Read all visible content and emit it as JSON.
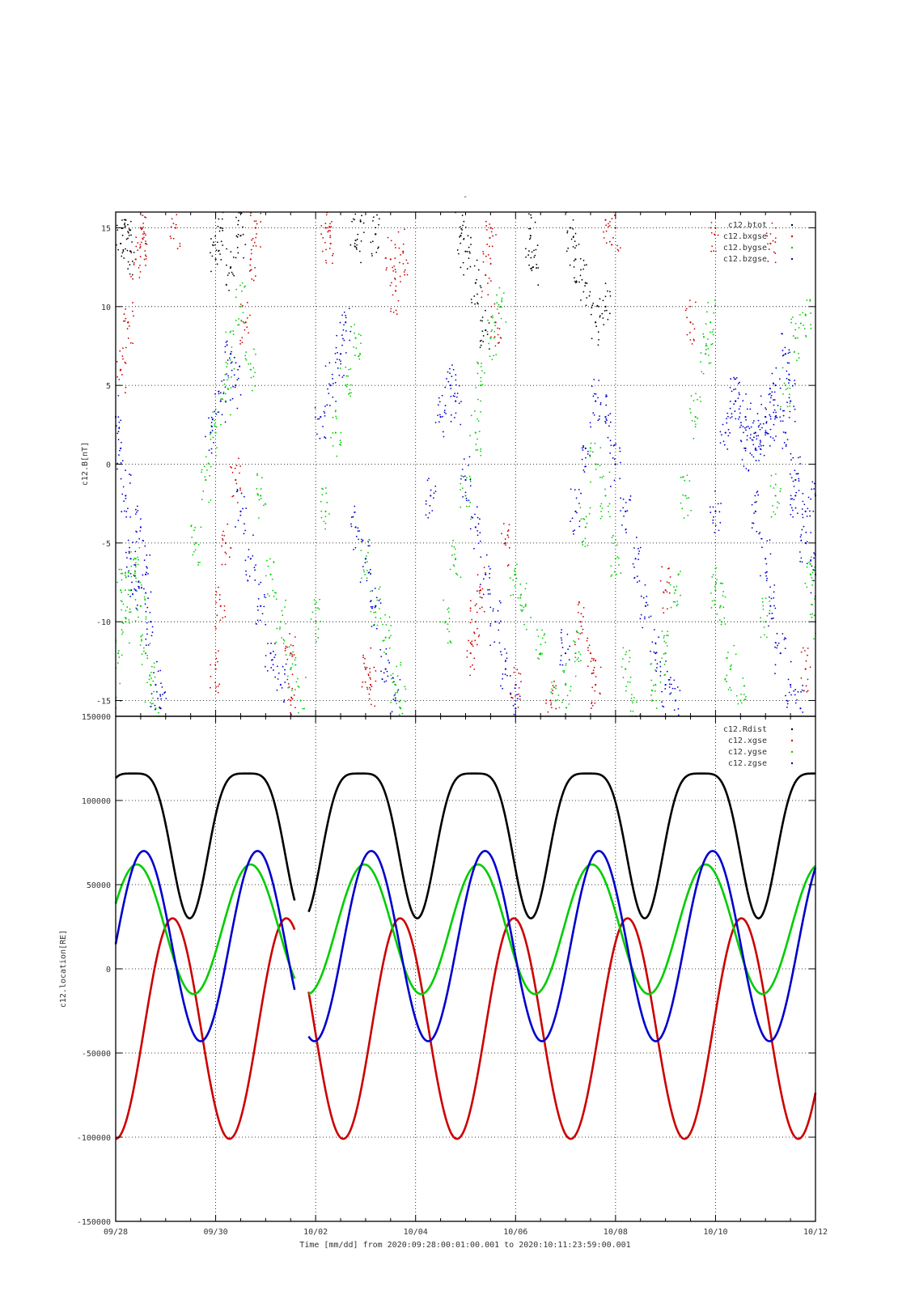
{
  "figure": {
    "top_title": "-",
    "time_footer": "Time [mm/dd]  from 2020:09:28:00:01:00.001  to  2020:10:11:23:59:00.001"
  },
  "colors": {
    "black": "#000000",
    "red": "#cc0000",
    "green": "#00cc00",
    "blue": "#0000cc"
  },
  "chart_data": [
    {
      "type": "scatter",
      "ylabel": "c12.B[nT]",
      "ylim": [
        -16,
        16
      ],
      "xlim": [
        "09/28",
        "10/12"
      ],
      "grid": true,
      "legend_position": "top-right",
      "yticks": [
        -15,
        -10,
        -5,
        0,
        5,
        10,
        15
      ],
      "xticks": [
        "09/28",
        "09/30",
        "10/02",
        "10/04",
        "10/06",
        "10/08",
        "10/10",
        "10/12"
      ],
      "series": [
        {
          "name": "c12.btot",
          "color": "#000000",
          "points": [
            [
              0.1,
              14
            ],
            [
              0.2,
              15.5
            ],
            [
              0.3,
              13.5
            ],
            [
              2.0,
              13
            ],
            [
              2.1,
              15
            ],
            [
              2.3,
              12.5
            ],
            [
              2.5,
              14.5
            ],
            [
              4.8,
              14.2
            ],
            [
              4.9,
              15.4
            ],
            [
              5.2,
              14.6
            ],
            [
              6.9,
              14.5
            ],
            [
              7.0,
              13.5
            ],
            [
              7.2,
              11.5
            ],
            [
              7.4,
              8.5
            ],
            [
              8.3,
              14.5
            ],
            [
              8.35,
              12.5
            ],
            [
              9.1,
              15
            ],
            [
              9.2,
              13
            ],
            [
              9.4,
              11.5
            ],
            [
              9.6,
              9
            ],
            [
              9.8,
              10
            ]
          ]
        },
        {
          "name": "c12.bxgse",
          "color": "#cc0000",
          "points": [
            [
              0.1,
              6
            ],
            [
              0.25,
              9
            ],
            [
              0.4,
              13
            ],
            [
              0.5,
              15
            ],
            [
              0.6,
              14
            ],
            [
              1.2,
              15
            ],
            [
              2.0,
              -13
            ],
            [
              2.1,
              -9
            ],
            [
              2.2,
              -5
            ],
            [
              2.4,
              -1
            ],
            [
              2.6,
              9
            ],
            [
              2.7,
              13
            ],
            [
              2.8,
              15
            ],
            [
              3.5,
              -12
            ],
            [
              3.5,
              -15
            ],
            [
              4.2,
              15
            ],
            [
              4.3,
              14
            ],
            [
              5.0,
              -13
            ],
            [
              5.1,
              -14
            ],
            [
              5.5,
              13
            ],
            [
              5.6,
              11
            ],
            [
              5.75,
              13.5
            ],
            [
              7.1,
              -12
            ],
            [
              7.2,
              -10
            ],
            [
              7.3,
              -8
            ],
            [
              7.4,
              12
            ],
            [
              7.5,
              15
            ],
            [
              7.6,
              9
            ],
            [
              7.8,
              -5
            ],
            [
              8.0,
              -14
            ],
            [
              8.7,
              -15
            ],
            [
              9.3,
              -10
            ],
            [
              9.5,
              -12
            ],
            [
              9.6,
              -14
            ],
            [
              9.8,
              15.5
            ],
            [
              10.0,
              15
            ],
            [
              11.0,
              -8
            ],
            [
              11.5,
              9
            ],
            [
              12.0,
              15
            ],
            [
              13.1,
              14
            ],
            [
              13.8,
              -13
            ]
          ]
        },
        {
          "name": "c12.bygse",
          "color": "#00cc00",
          "points": [
            [
              0.0,
              -15
            ],
            [
              0.05,
              -12
            ],
            [
              0.1,
              -8
            ],
            [
              0.2,
              -10
            ],
            [
              0.3,
              -8
            ],
            [
              0.4,
              -6
            ],
            [
              0.5,
              -9
            ],
            [
              0.6,
              -12
            ],
            [
              0.7,
              -14
            ],
            [
              0.8,
              -15.5
            ],
            [
              1.6,
              -5
            ],
            [
              1.8,
              -1
            ],
            [
              2.0,
              2
            ],
            [
              2.2,
              4
            ],
            [
              2.3,
              7
            ],
            [
              2.5,
              10
            ],
            [
              2.7,
              6
            ],
            [
              2.9,
              -2
            ],
            [
              3.1,
              -7
            ],
            [
              3.3,
              -10
            ],
            [
              3.5,
              -13
            ],
            [
              3.7,
              -15
            ],
            [
              4.0,
              -10
            ],
            [
              4.2,
              -3
            ],
            [
              4.4,
              2
            ],
            [
              4.6,
              5
            ],
            [
              4.8,
              8
            ],
            [
              5.0,
              -6
            ],
            [
              5.2,
              -9
            ],
            [
              5.4,
              -11
            ],
            [
              5.6,
              -14
            ],
            [
              5.7,
              -15.5
            ],
            [
              6.6,
              -10
            ],
            [
              6.8,
              -6
            ],
            [
              7.0,
              -2
            ],
            [
              7.2,
              2
            ],
            [
              7.3,
              5
            ],
            [
              7.5,
              8
            ],
            [
              7.7,
              10
            ],
            [
              8.0,
              -7
            ],
            [
              8.2,
              -9
            ],
            [
              8.5,
              -12
            ],
            [
              8.8,
              -15
            ],
            [
              9.0,
              -14
            ],
            [
              9.2,
              -12
            ],
            [
              9.4,
              -4
            ],
            [
              9.6,
              0
            ],
            [
              9.8,
              -2
            ],
            [
              10.0,
              -6
            ],
            [
              10.2,
              -13
            ],
            [
              10.4,
              -16
            ],
            [
              10.8,
              -14
            ],
            [
              11.0,
              -12
            ],
            [
              11.2,
              -8
            ],
            [
              11.4,
              -2
            ],
            [
              11.6,
              3
            ],
            [
              11.8,
              7
            ],
            [
              11.9,
              9
            ],
            [
              12.0,
              -8
            ],
            [
              12.1,
              -9
            ],
            [
              12.3,
              -13
            ],
            [
              12.5,
              -15
            ],
            [
              13.0,
              -10
            ],
            [
              13.2,
              -2
            ],
            [
              13.4,
              5
            ],
            [
              13.6,
              8
            ],
            [
              13.8,
              9.5
            ],
            [
              13.9,
              -7
            ],
            [
              14.0,
              -10
            ]
          ]
        },
        {
          "name": "c12.bzgse",
          "color": "#0000cc",
          "points": [
            [
              0.0,
              3
            ],
            [
              0.1,
              1
            ],
            [
              0.2,
              -2
            ],
            [
              0.3,
              -6
            ],
            [
              0.4,
              -8
            ],
            [
              0.5,
              -4
            ],
            [
              0.6,
              -7
            ],
            [
              0.7,
              -10
            ],
            [
              0.8,
              -14
            ],
            [
              0.9,
              -15.5
            ],
            [
              1.9,
              2
            ],
            [
              2.1,
              4
            ],
            [
              2.3,
              7
            ],
            [
              2.4,
              5
            ],
            [
              2.5,
              -3
            ],
            [
              2.7,
              -6
            ],
            [
              2.9,
              -9
            ],
            [
              3.1,
              -12
            ],
            [
              3.3,
              -14
            ],
            [
              4.1,
              3
            ],
            [
              4.3,
              5
            ],
            [
              4.5,
              7
            ],
            [
              4.6,
              9
            ],
            [
              4.8,
              -4
            ],
            [
              5.0,
              -6
            ],
            [
              5.2,
              -9
            ],
            [
              5.4,
              -13
            ],
            [
              5.6,
              -15
            ],
            [
              6.3,
              -2
            ],
            [
              6.5,
              3
            ],
            [
              6.7,
              5
            ],
            [
              6.8,
              4
            ],
            [
              7.0,
              -1
            ],
            [
              7.2,
              -4
            ],
            [
              7.4,
              -7
            ],
            [
              7.6,
              -10
            ],
            [
              7.8,
              -13
            ],
            [
              8.0,
              -15.5
            ],
            [
              9.0,
              -12
            ],
            [
              9.2,
              -3
            ],
            [
              9.4,
              1
            ],
            [
              9.6,
              4
            ],
            [
              9.8,
              3
            ],
            [
              10.0,
              0
            ],
            [
              10.2,
              -3
            ],
            [
              10.4,
              -6
            ],
            [
              10.6,
              -9
            ],
            [
              10.8,
              -12
            ],
            [
              11.0,
              -14
            ],
            [
              11.2,
              -15
            ],
            [
              12.0,
              -3
            ],
            [
              12.2,
              2
            ],
            [
              12.4,
              4
            ],
            [
              12.6,
              1
            ],
            [
              12.8,
              -3
            ],
            [
              13.0,
              -6
            ],
            [
              13.1,
              -9
            ],
            [
              13.3,
              -12
            ],
            [
              13.5,
              -14
            ],
            [
              13.7,
              -15.5
            ],
            [
              12.4,
              4
            ],
            [
              12.6,
              3
            ],
            [
              12.8,
              2
            ],
            [
              13.0,
              3
            ],
            [
              13.2,
              3
            ],
            [
              13.4,
              2
            ],
            [
              13.6,
              -2
            ],
            [
              13.8,
              -5
            ],
            [
              14.0,
              -7
            ],
            [
              12.8,
              1
            ],
            [
              13.0,
              2
            ],
            [
              13.2,
              5
            ],
            [
              13.4,
              7
            ],
            [
              13.5,
              4
            ],
            [
              13.6,
              -1
            ],
            [
              13.8,
              -3
            ],
            [
              14.0,
              -2
            ]
          ]
        }
      ]
    },
    {
      "type": "line",
      "ylabel": "c12.location[RE]",
      "ylim": [
        -150000,
        150000
      ],
      "xlim": [
        "09/28",
        "10/12"
      ],
      "grid": true,
      "legend_position": "top-right",
      "yticks": [
        -150000,
        -100000,
        -50000,
        0,
        50000,
        100000,
        150000
      ],
      "xticks": [
        "09/28",
        "09/30",
        "10/02",
        "10/04",
        "10/06",
        "10/08",
        "10/10",
        "10/12"
      ],
      "period_days": 2.276,
      "series": [
        {
          "name": "c12.Rdist",
          "color": "#000000",
          "peak": 116000,
          "trough": 30000,
          "trough_days": [
            1.48,
            3.77,
            6.04,
            8.33,
            10.6,
            12.89
          ]
        },
        {
          "name": "c12.xgse",
          "color": "#cc0000",
          "peak": 30000,
          "trough": -101000,
          "trough_days": [
            0.0,
            2.4,
            4.6,
            6.9,
            9.2,
            11.45,
            13.7
          ]
        },
        {
          "name": "c12.ygse",
          "color": "#00cc00",
          "peak": 62000,
          "trough": -15000,
          "trough_days": [
            1.56,
            3.85,
            6.12,
            8.4,
            10.68,
            12.96
          ]
        },
        {
          "name": "c12.zgse",
          "color": "#0000cc",
          "peak": 70000,
          "trough": -43000,
          "trough_days": [
            1.7,
            3.97,
            6.26,
            8.53,
            10.82,
            13.08
          ]
        }
      ]
    }
  ]
}
